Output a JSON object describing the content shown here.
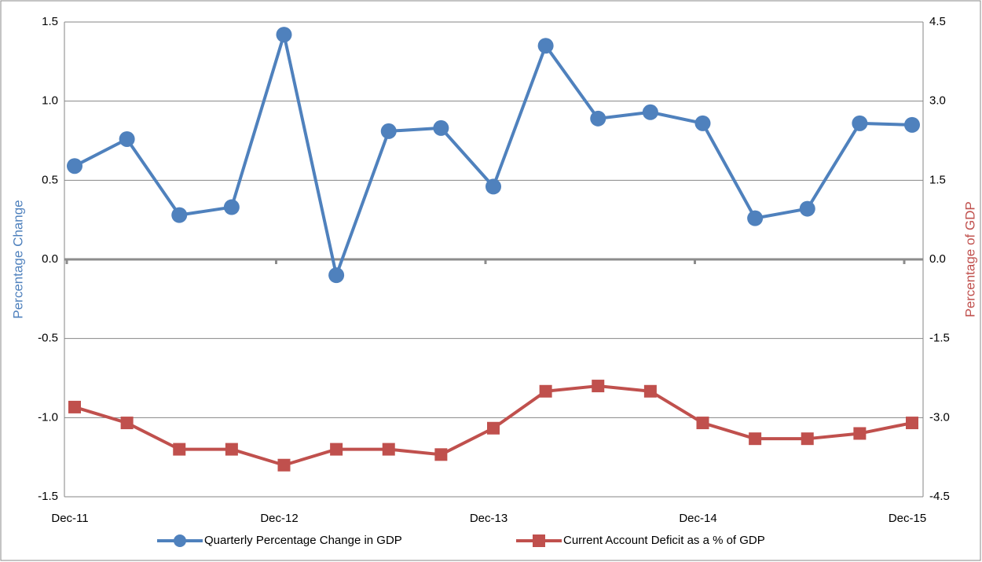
{
  "chart_data": {
    "type": "line",
    "categories": [
      "Dec-11",
      null,
      null,
      null,
      "Dec-12",
      null,
      null,
      null,
      "Dec-13",
      null,
      null,
      null,
      "Dec-14",
      null,
      null,
      null,
      "Dec-15"
    ],
    "series": [
      {
        "name": "Quarterly Percentage Change in GDP",
        "color": "#4f81bd",
        "marker": "circle",
        "values": [
          0.59,
          0.76,
          0.28,
          0.33,
          1.42,
          -0.1,
          0.81,
          0.83,
          0.46,
          1.35,
          0.89,
          0.93,
          0.86,
          0.26,
          0.32,
          0.86,
          0.85
        ]
      },
      {
        "name": "Current Account Deficit as a % of GDP",
        "color": "#c0504d",
        "marker": "square",
        "axis": "y2",
        "values": [
          -2.8,
          -3.1,
          -3.6,
          -3.6,
          -3.9,
          -3.6,
          -3.6,
          -3.7,
          -3.2,
          -2.5,
          -2.4,
          -2.5,
          -3.1,
          -3.4,
          -3.4,
          -3.3,
          -3.1
        ]
      }
    ],
    "ylabel": "Percentage Change",
    "y2label": "Percentage of GDP",
    "ylim": [
      -1.5,
      1.5
    ],
    "yticks": [
      -1.5,
      {
        "value": -1,
        "label": "-1.0"
      },
      -0.5,
      {
        "value": 0,
        "label": "0.0"
      },
      0.5,
      {
        "value": 1,
        "label": "1.0"
      },
      1.5
    ],
    "y2lim": [
      -4.5,
      4.5
    ],
    "y2ticks": [
      -4.5,
      {
        "value": -3,
        "label": "-3.0"
      },
      -1.5,
      {
        "value": 0,
        "label": "0.0"
      },
      1.5,
      {
        "value": 3,
        "label": "3.0"
      },
      4.5
    ],
    "grid": true,
    "legend": "bottom"
  }
}
